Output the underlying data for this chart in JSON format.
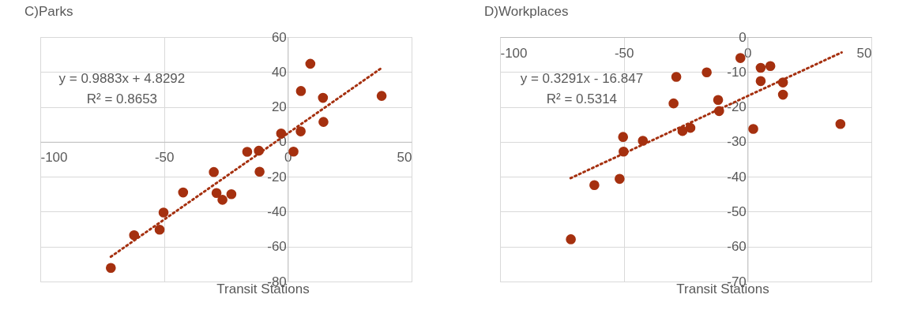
{
  "chart_data": [
    {
      "type": "scatter",
      "title": "C)Parks",
      "xlabel": "Transit Stations",
      "annotations": [
        "y = 0.9883x + 4.8292",
        "R² = 0.8653"
      ],
      "xlim": [
        -100,
        50
      ],
      "xticks": [
        -100,
        -50,
        0,
        50
      ],
      "ylim": [
        -80,
        60
      ],
      "yticks": [
        -80,
        -60,
        -40,
        -20,
        0,
        20,
        40,
        60
      ],
      "grid": true,
      "series": [
        {
          "marker": "circle",
          "color": "#a5300f",
          "x": [
            -71.5,
            -62.1,
            -51.8,
            -50.2,
            -42.3,
            -29.9,
            -28.8,
            -26.4,
            -22.8,
            -16.4,
            -11.7,
            -11.4,
            -2.7,
            2.3,
            5.2,
            5.3,
            9.1,
            14.2,
            14.4,
            37.9
          ],
          "values": [
            -72.2,
            -53.5,
            -50.3,
            -40.5,
            -29,
            -17.3,
            -29.3,
            -33.2,
            -30,
            -5.7,
            -5.1,
            -17.1,
            4.8,
            -5.6,
            6.0,
            29.1,
            44.7,
            25.2,
            11.4,
            26.3
          ]
        },
        {
          "type": "line",
          "line_style": "dotted",
          "color": "#a5300f",
          "x": [
            -71.5,
            38
          ],
          "values": [
            -65.8,
            42.4
          ]
        }
      ]
    },
    {
      "type": "scatter",
      "title": "D)Workplaces",
      "xlabel": "Transit Stations",
      "annotations": [
        "y = 0.3291x - 16.847",
        "R² = 0.5314"
      ],
      "xlim": [
        -100,
        50
      ],
      "xticks": [
        -100,
        -50,
        0,
        50
      ],
      "ylim": [
        -70,
        0
      ],
      "yticks": [
        -70,
        -60,
        -50,
        -40,
        -30,
        -20,
        -10,
        0
      ],
      "grid": true,
      "series": [
        {
          "marker": "circle",
          "color": "#a5300f",
          "x": [
            -71.4,
            -61.9,
            -51.7,
            -50.3,
            -50.1,
            -42.3,
            -29.9,
            -28.8,
            -26.3,
            -23.1,
            -16.5,
            -11.9,
            -11.5,
            -2.9,
            2.3,
            5.3,
            5.3,
            9.2,
            14.3,
            14.3,
            37.5
          ],
          "values": [
            -57.9,
            -42.4,
            -40.6,
            -28.6,
            -32.8,
            -29.7,
            -19.0,
            -11.4,
            -26.9,
            -26.0,
            -10.1,
            -18.0,
            -21.2,
            -6.0,
            -26.3,
            -8.8,
            -12.6,
            -8.3,
            -13.0,
            -16.5,
            -24.9
          ]
        },
        {
          "type": "line",
          "line_style": "dotted",
          "color": "#a5300f",
          "x": [
            -71.5,
            38
          ],
          "values": [
            -40.4,
            -4.4
          ]
        }
      ]
    }
  ]
}
